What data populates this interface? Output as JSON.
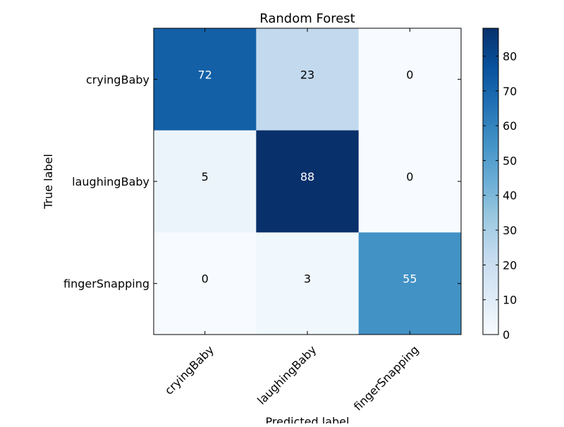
{
  "chart_data": {
    "type": "heatmap",
    "title": "Random Forest",
    "xlabel": "Predicted label",
    "ylabel": "True label",
    "x_categories": [
      "cryingBaby",
      "laughingBaby",
      "fingerSnapping"
    ],
    "y_categories": [
      "cryingBaby",
      "laughingBaby",
      "fingerSnapping"
    ],
    "values": [
      [
        72,
        23,
        0
      ],
      [
        5,
        88,
        0
      ],
      [
        0,
        3,
        55
      ]
    ],
    "colormap": "Blues",
    "color_range": [
      0,
      88
    ],
    "colorbar": {
      "ticks": [
        0,
        10,
        20,
        30,
        40,
        50,
        60,
        70,
        80
      ]
    },
    "cell_text_colors": {
      "light": "#ffffff",
      "dark": "#000000"
    },
    "x_tick_rotation_deg": 45
  }
}
